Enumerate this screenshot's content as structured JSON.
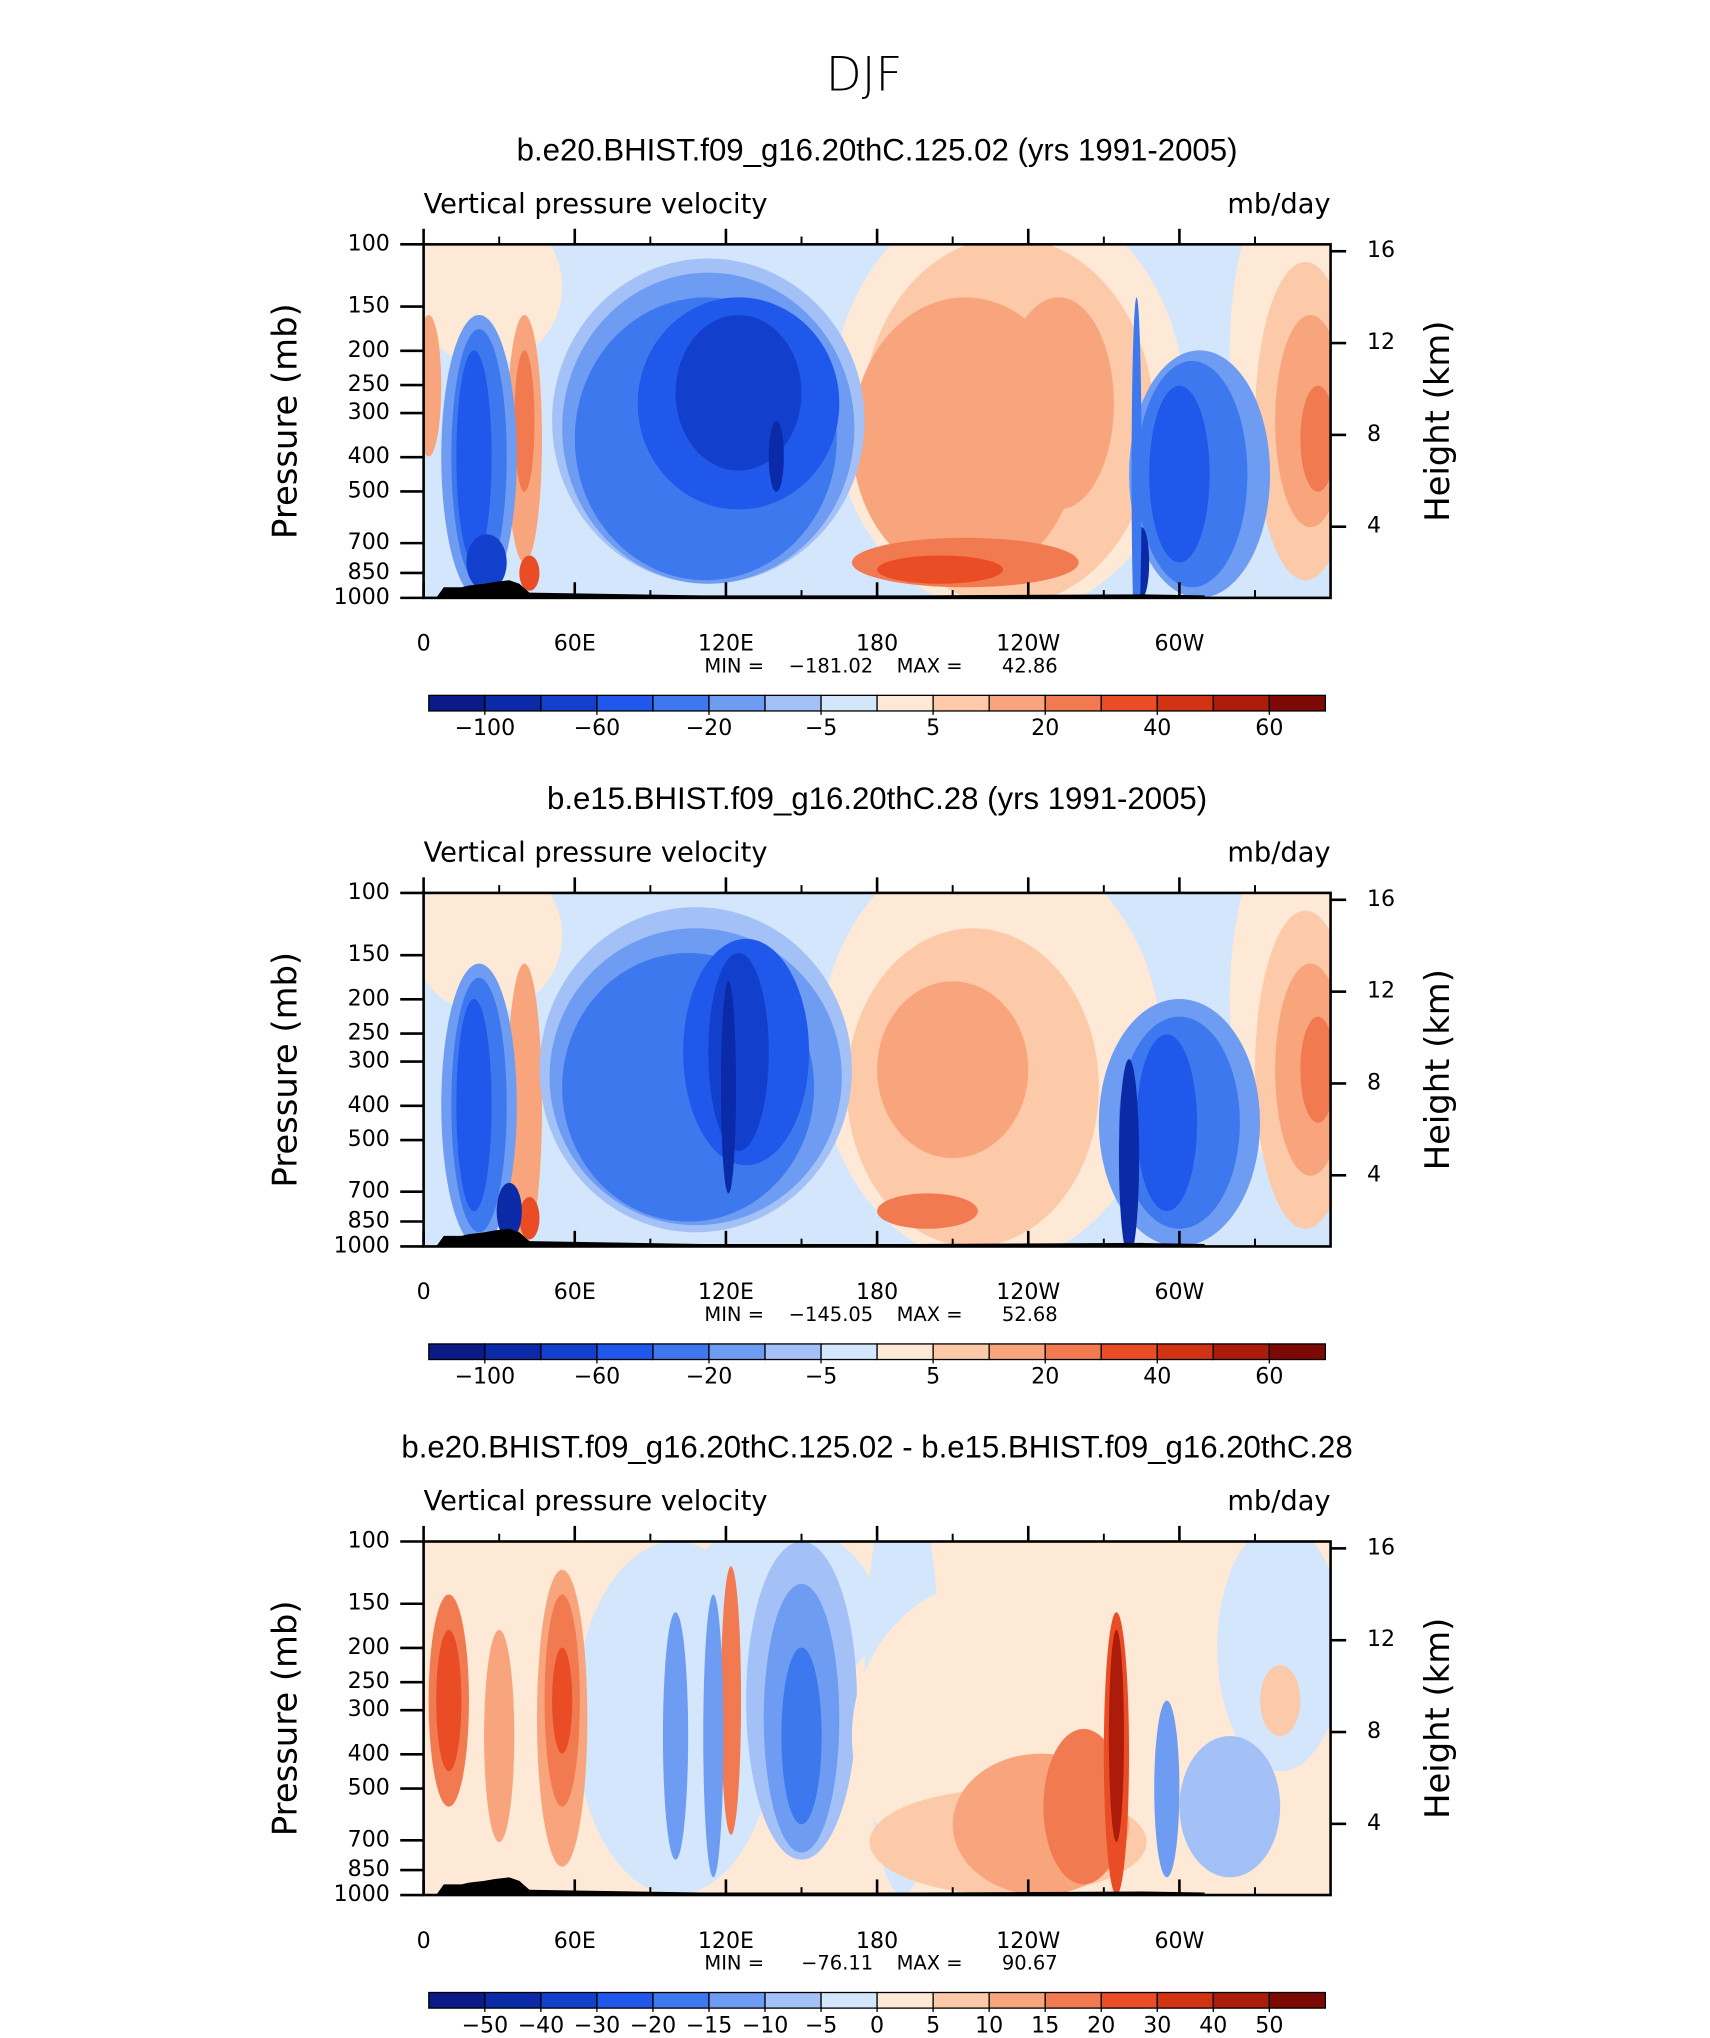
{
  "figure_title": "DJF",
  "chart_data": [
    {
      "type": "contour",
      "title": "b.e20.BHIST.f09_g16.20thC.125.02 (yrs 1991-2005)",
      "subtitle": "Vertical pressure velocity",
      "units": "mb/day",
      "y_label": "Pressure (mb)",
      "y2_label": "Height (km)",
      "xlim": [
        0,
        360
      ],
      "xticks": [
        0,
        {
          "value": 60,
          "label": "60E"
        },
        {
          "value": 120,
          "label": "120E"
        },
        180,
        {
          "value": 240,
          "label": "120W"
        },
        {
          "value": 300,
          "label": "60W"
        }
      ],
      "ylim": [
        1000,
        100
      ],
      "y_scale": "log",
      "yticks": [
        100,
        150,
        200,
        250,
        300,
        400,
        500,
        700,
        850,
        1000
      ],
      "y2lim": [
        0.9,
        16.3
      ],
      "y2ticks": [
        4,
        8,
        12,
        16
      ],
      "min_label": "MIN =",
      "min": {
        "value": -181.02,
        "label": "−181.02"
      },
      "max_label": "MAX =",
      "max": 42.86,
      "colorbar": {
        "colors": [
          "#0a1a86",
          "#0b2aa8",
          "#1240cc",
          "#1f58ea",
          "#3d78ee",
          "#6e9cf3",
          "#a3c1f7",
          "#d4e6fb",
          "#fde9d6",
          "#fccaa8",
          "#f8a47c",
          "#f27a50",
          "#ea4d26",
          "#d23312",
          "#ad1c0a",
          "#7c0903"
        ],
        "ticks": [
          {
            "value": -100,
            "label": "−100"
          },
          {
            "value": -60,
            "label": "−60"
          },
          {
            "value": -20,
            "label": "−20"
          },
          {
            "value": -5,
            "label": "−5"
          },
          5,
          20,
          40,
          60
        ]
      }
    },
    {
      "type": "contour",
      "title": "b.e15.BHIST.f09_g16.20thC.28 (yrs 1991-2005)",
      "subtitle": "Vertical pressure velocity",
      "units": "mb/day",
      "y_label": "Pressure (mb)",
      "y2_label": "Height (km)",
      "xlim": [
        0,
        360
      ],
      "xticks": [
        0,
        {
          "value": 60,
          "label": "60E"
        },
        {
          "value": 120,
          "label": "120E"
        },
        180,
        {
          "value": 240,
          "label": "120W"
        },
        {
          "value": 300,
          "label": "60W"
        }
      ],
      "ylim": [
        1000,
        100
      ],
      "y_scale": "log",
      "yticks": [
        100,
        150,
        200,
        250,
        300,
        400,
        500,
        700,
        850,
        1000
      ],
      "y2lim": [
        0.9,
        16.3
      ],
      "y2ticks": [
        4,
        8,
        12,
        16
      ],
      "min_label": "MIN =",
      "min": {
        "value": -145.05,
        "label": "−145.05"
      },
      "max_label": "MAX =",
      "max": 52.68,
      "colorbar": {
        "colors": [
          "#0a1a86",
          "#0b2aa8",
          "#1240cc",
          "#1f58ea",
          "#3d78ee",
          "#6e9cf3",
          "#a3c1f7",
          "#d4e6fb",
          "#fde9d6",
          "#fccaa8",
          "#f8a47c",
          "#f27a50",
          "#ea4d26",
          "#d23312",
          "#ad1c0a",
          "#7c0903"
        ],
        "ticks": [
          {
            "value": -100,
            "label": "−100"
          },
          {
            "value": -60,
            "label": "−60"
          },
          {
            "value": -20,
            "label": "−20"
          },
          {
            "value": -5,
            "label": "−5"
          },
          5,
          20,
          40,
          60
        ]
      }
    },
    {
      "type": "contour",
      "title": "b.e20.BHIST.f09_g16.20thC.125.02 - b.e15.BHIST.f09_g16.20thC.28",
      "subtitle": "Vertical pressure velocity",
      "units": "mb/day",
      "y_label": "Pressure (mb)",
      "y2_label": "Height (km)",
      "xlim": [
        0,
        360
      ],
      "xticks": [
        0,
        {
          "value": 60,
          "label": "60E"
        },
        {
          "value": 120,
          "label": "120E"
        },
        180,
        {
          "value": 240,
          "label": "120W"
        },
        {
          "value": 300,
          "label": "60W"
        }
      ],
      "ylim": [
        1000,
        100
      ],
      "y_scale": "log",
      "yticks": [
        100,
        150,
        200,
        250,
        300,
        400,
        500,
        700,
        850,
        1000
      ],
      "y2lim": [
        0.9,
        16.3
      ],
      "y2ticks": [
        4,
        8,
        12,
        16
      ],
      "min_label": "MIN =",
      "min": {
        "value": -76.11,
        "label": "−76.11"
      },
      "max_label": "MAX =",
      "max": 90.67,
      "colorbar": {
        "colors": [
          "#0a1a86",
          "#0b2aa8",
          "#1240cc",
          "#1f58ea",
          "#3d78ee",
          "#6e9cf3",
          "#a3c1f7",
          "#d4e6fb",
          "#fde9d6",
          "#fccaa8",
          "#f8a47c",
          "#f27a50",
          "#ea4d26",
          "#d23312",
          "#ad1c0a",
          "#7c0903"
        ],
        "ticks": [
          {
            "value": -50,
            "label": "−50"
          },
          {
            "value": -40,
            "label": "−40"
          },
          {
            "value": -30,
            "label": "−30"
          },
          {
            "value": -20,
            "label": "−20"
          },
          {
            "value": -15,
            "label": "−15"
          },
          {
            "value": -10,
            "label": "−10"
          },
          {
            "value": -5,
            "label": "−5"
          },
          0,
          5,
          10,
          15,
          20,
          30,
          40,
          50
        ]
      }
    }
  ]
}
